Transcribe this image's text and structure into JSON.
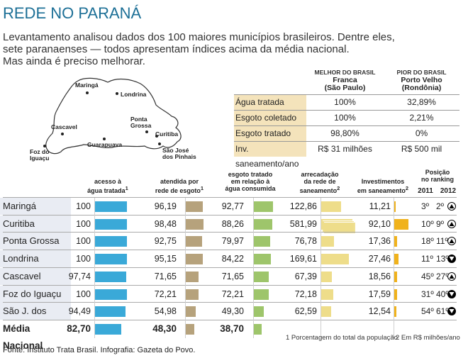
{
  "title": "REDE NO PARANÁ",
  "intro": [
    "Levantamento analisou dados dos 100 maiores municípios brasileiros. Dentre eles,",
    "sete paranaenses — todos apresentam índices acima da média nacional.",
    "Mas ainda é preciso melhorar."
  ],
  "map": {
    "cities": [
      "Maringá",
      "Londrina",
      "Ponta Grossa",
      "Cascavel",
      "Curitiba",
      "Guarapuava",
      "São José dos Pinhais",
      "Foz do Iguaçu"
    ]
  },
  "reference": {
    "best_header": "MELHOR DO BRASIL",
    "best_city": "Franca",
    "best_state": "(São Paulo)",
    "worst_header": "PIOR DO BRASIL",
    "worst_city": "Porto Velho",
    "worst_state": "(Rondônia)",
    "rows": [
      {
        "label": "Água tratada",
        "best": "100%",
        "worst": "32,89%"
      },
      {
        "label": "Esgoto coletado",
        "best": "100%",
        "worst": "2,21%"
      },
      {
        "label": "Esgoto tratado",
        "best": "98,80%",
        "worst": "0%"
      },
      {
        "label": "Inv. saneamento/ano",
        "best": "R$ 31 milhões",
        "worst": "R$ 500 mil"
      }
    ]
  },
  "chart_data": {
    "type": "table",
    "title": "REDE NO PARANÁ",
    "columns": [
      {
        "key": "agua",
        "label": "acesso à água tratada",
        "note": "1",
        "color": "#3aa9d8"
      },
      {
        "key": "esgoto",
        "label": "atendida por rede de esgoto",
        "note": "1",
        "color": "#b6a27c"
      },
      {
        "key": "tratado",
        "label": "esgoto tratado em relação à água consumida",
        "note": "",
        "color": "#9ec56b"
      },
      {
        "key": "arrecadacao",
        "label": "arrecadação da rede de saneamento",
        "note": "2",
        "color": "#eedd8a"
      },
      {
        "key": "investimentos",
        "label": "Investimentos em saneamento",
        "note": "2",
        "color": "#f0b21c"
      }
    ],
    "ranking_header": "Posição no ranking",
    "ranking_years": [
      "2011",
      "2012"
    ],
    "rows": [
      {
        "city": "Maringá",
        "agua": 100,
        "agua_label": "100",
        "esgoto": 96.19,
        "esgoto_label": "96,19",
        "tratado": 92.77,
        "tratado_label": "92,77",
        "arrecadacao": 122.86,
        "arrecadacao_label": "122,86",
        "investimentos": 11.21,
        "investimentos_label": "11,21",
        "rank2011": "3º",
        "rank2012": "2º",
        "trend": "up"
      },
      {
        "city": "Curitiba",
        "agua": 100,
        "agua_label": "100",
        "esgoto": 98.48,
        "esgoto_label": "98,48",
        "tratado": 88.26,
        "tratado_label": "88,26",
        "arrecadacao": 581.99,
        "arrecadacao_label": "581,99",
        "investimentos": 92.1,
        "investimentos_label": "92,10",
        "rank2011": "10º",
        "rank2012": "9º",
        "trend": "up"
      },
      {
        "city": "Ponta Grossa",
        "agua": 100,
        "agua_label": "100",
        "esgoto": 92.75,
        "esgoto_label": "92,75",
        "tratado": 79.97,
        "tratado_label": "79,97",
        "arrecadacao": 76.78,
        "arrecadacao_label": "76,78",
        "investimentos": 17.36,
        "investimentos_label": "17,36",
        "rank2011": "18º",
        "rank2012": "11º",
        "trend": "up"
      },
      {
        "city": "Londrina",
        "agua": 100,
        "agua_label": "100",
        "esgoto": 95.15,
        "esgoto_label": "95,15",
        "tratado": 84.22,
        "tratado_label": "84,22",
        "arrecadacao": 169.61,
        "arrecadacao_label": "169,61",
        "investimentos": 27.46,
        "investimentos_label": "27,46",
        "rank2011": "11º",
        "rank2012": "13º",
        "trend": "down"
      },
      {
        "city": "Cascavel",
        "agua": 97.74,
        "agua_label": "97,74",
        "esgoto": 71.65,
        "esgoto_label": "71,65",
        "tratado": 71.65,
        "tratado_label": "71,65",
        "arrecadacao": 67.39,
        "arrecadacao_label": "67,39",
        "investimentos": 18.56,
        "investimentos_label": "18,56",
        "rank2011": "45º",
        "rank2012": "27º",
        "trend": "up"
      },
      {
        "city": "Foz do Iguaçu",
        "agua": 100,
        "agua_label": "100",
        "esgoto": 72.21,
        "esgoto_label": "72,21",
        "tratado": 72.21,
        "tratado_label": "72,21",
        "arrecadacao": 72.18,
        "arrecadacao_label": "72,18",
        "investimentos": 17.59,
        "investimentos_label": "17,59",
        "rank2011": "31º",
        "rank2012": "40º",
        "trend": "down"
      },
      {
        "city": "São J. dos Pinhais",
        "agua": 94.49,
        "agua_label": "94,49",
        "esgoto": 54.98,
        "esgoto_label": "54,98",
        "tratado": 49.3,
        "tratado_label": "49,30",
        "arrecadacao": 62.59,
        "arrecadacao_label": "62,59",
        "investimentos": 12.54,
        "investimentos_label": "12,54",
        "rank2011": "54º",
        "rank2012": "61º",
        "trend": "down"
      }
    ],
    "national": {
      "city": "Média Nacional",
      "agua": 82.7,
      "agua_label": "82,70",
      "esgoto": 48.3,
      "esgoto_label": "48,30",
      "tratado": 38.7,
      "tratado_label": "38,70"
    },
    "footnotes": [
      "1 Porcentagem do total da população",
      "2 Em R$ milhões/ano"
    ]
  },
  "source": "Fonte: Instituto Trata Brasil. Infografia: Gazeta do Povo."
}
